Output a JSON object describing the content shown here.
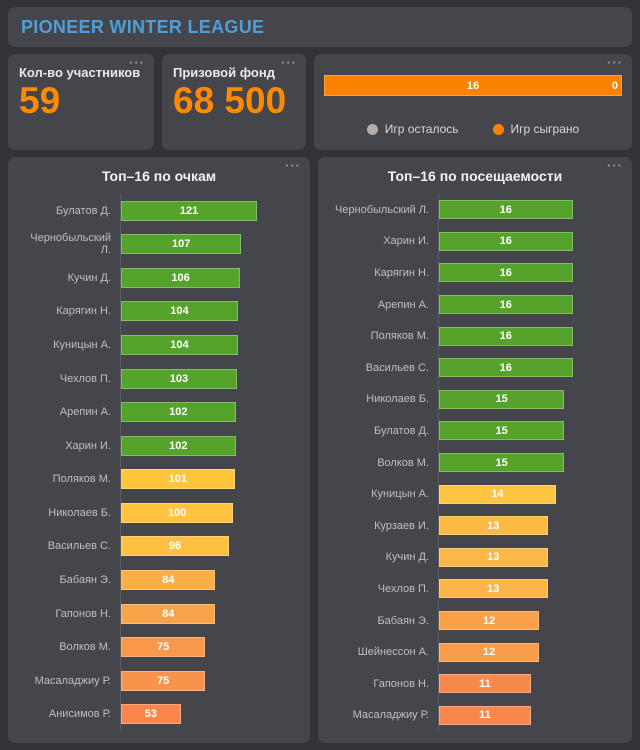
{
  "header": {
    "title": "PIONEER WINTER LEAGUE"
  },
  "icons": {
    "more_options": "···"
  },
  "colors": {
    "title_blue": "#4f9ed8",
    "accent_orange": "#ff8a00",
    "played_orange": "#fb8301",
    "remaining_gray": "#b3ada7",
    "green": "#56a32b"
  },
  "kpis": [
    {
      "label": "Кол-во участников",
      "value": "59"
    },
    {
      "label": "Призовой фонд",
      "value": "68 500"
    }
  ],
  "chart_data": [
    {
      "type": "bar",
      "stacked": true,
      "title": "",
      "series": [
        {
          "name": "Игр осталось",
          "value": 0,
          "color": "#b3ada7"
        },
        {
          "name": "Игр сыграно",
          "value": 16,
          "color": "#fb8301"
        }
      ],
      "played_label": "16",
      "remaining_label": "0",
      "legend_position": "bottom"
    },
    {
      "type": "bar",
      "orientation": "horizontal",
      "title": "Топ–16 по очкам",
      "xlim": [
        0,
        145
      ],
      "grid": false,
      "categories": [
        "Булатов Д.",
        "Чернобыльский Л.",
        "Кучин Д.",
        "Карягин Н.",
        "Куницын А.",
        "Чехлов П.",
        "Арепин А.",
        "Харин И.",
        "Поляков М.",
        "Николаев Б.",
        "Васильев С.",
        "Бабаян Э.",
        "Гапонов Н.",
        "Волков М.",
        "Масаладжиу Р.",
        "Анисимов Р."
      ],
      "values": [
        121,
        107,
        106,
        104,
        104,
        103,
        102,
        102,
        101,
        100,
        96,
        84,
        84,
        75,
        75,
        53
      ],
      "colors": [
        "#56a32b",
        "#56a32b",
        "#56a32b",
        "#56a32b",
        "#56a32b",
        "#56a32b",
        "#56a32b",
        "#56a32b",
        "#ffc53d",
        "#ffc340",
        "#fec042",
        "#fbad46",
        "#f9a348",
        "#f9974b",
        "#f8934c",
        "#f8864d"
      ]
    },
    {
      "type": "bar",
      "orientation": "horizontal",
      "title": "Топ–16 по посещаемости",
      "xlim": [
        0,
        20
      ],
      "grid": false,
      "categories": [
        "Чернобыльский Л.",
        "Харин И.",
        "Карягин Н.",
        "Арепин А.",
        "Поляков М.",
        "Васильев С.",
        "Николаев Б.",
        "Булатов Д.",
        "Волков М.",
        "Куницын А.",
        "Курзаев И.",
        "Кучин Д.",
        "Чехлов П.",
        "Бабаян Э.",
        "Шейнессон А.",
        "Гапонов Н.",
        "Масаладжиу Р."
      ],
      "values": [
        16,
        16,
        16,
        16,
        16,
        16,
        15,
        15,
        15,
        14,
        13,
        13,
        13,
        12,
        12,
        11,
        11
      ],
      "colors": [
        "#56a32b",
        "#56a32b",
        "#56a32b",
        "#56a32b",
        "#56a32b",
        "#56a32b",
        "#56a32b",
        "#56a32b",
        "#56a32b",
        "#fdc342",
        "#fcba45",
        "#fbb846",
        "#fab447",
        "#f9a049",
        "#f99d4a",
        "#f8894c",
        "#f8874d"
      ]
    }
  ]
}
